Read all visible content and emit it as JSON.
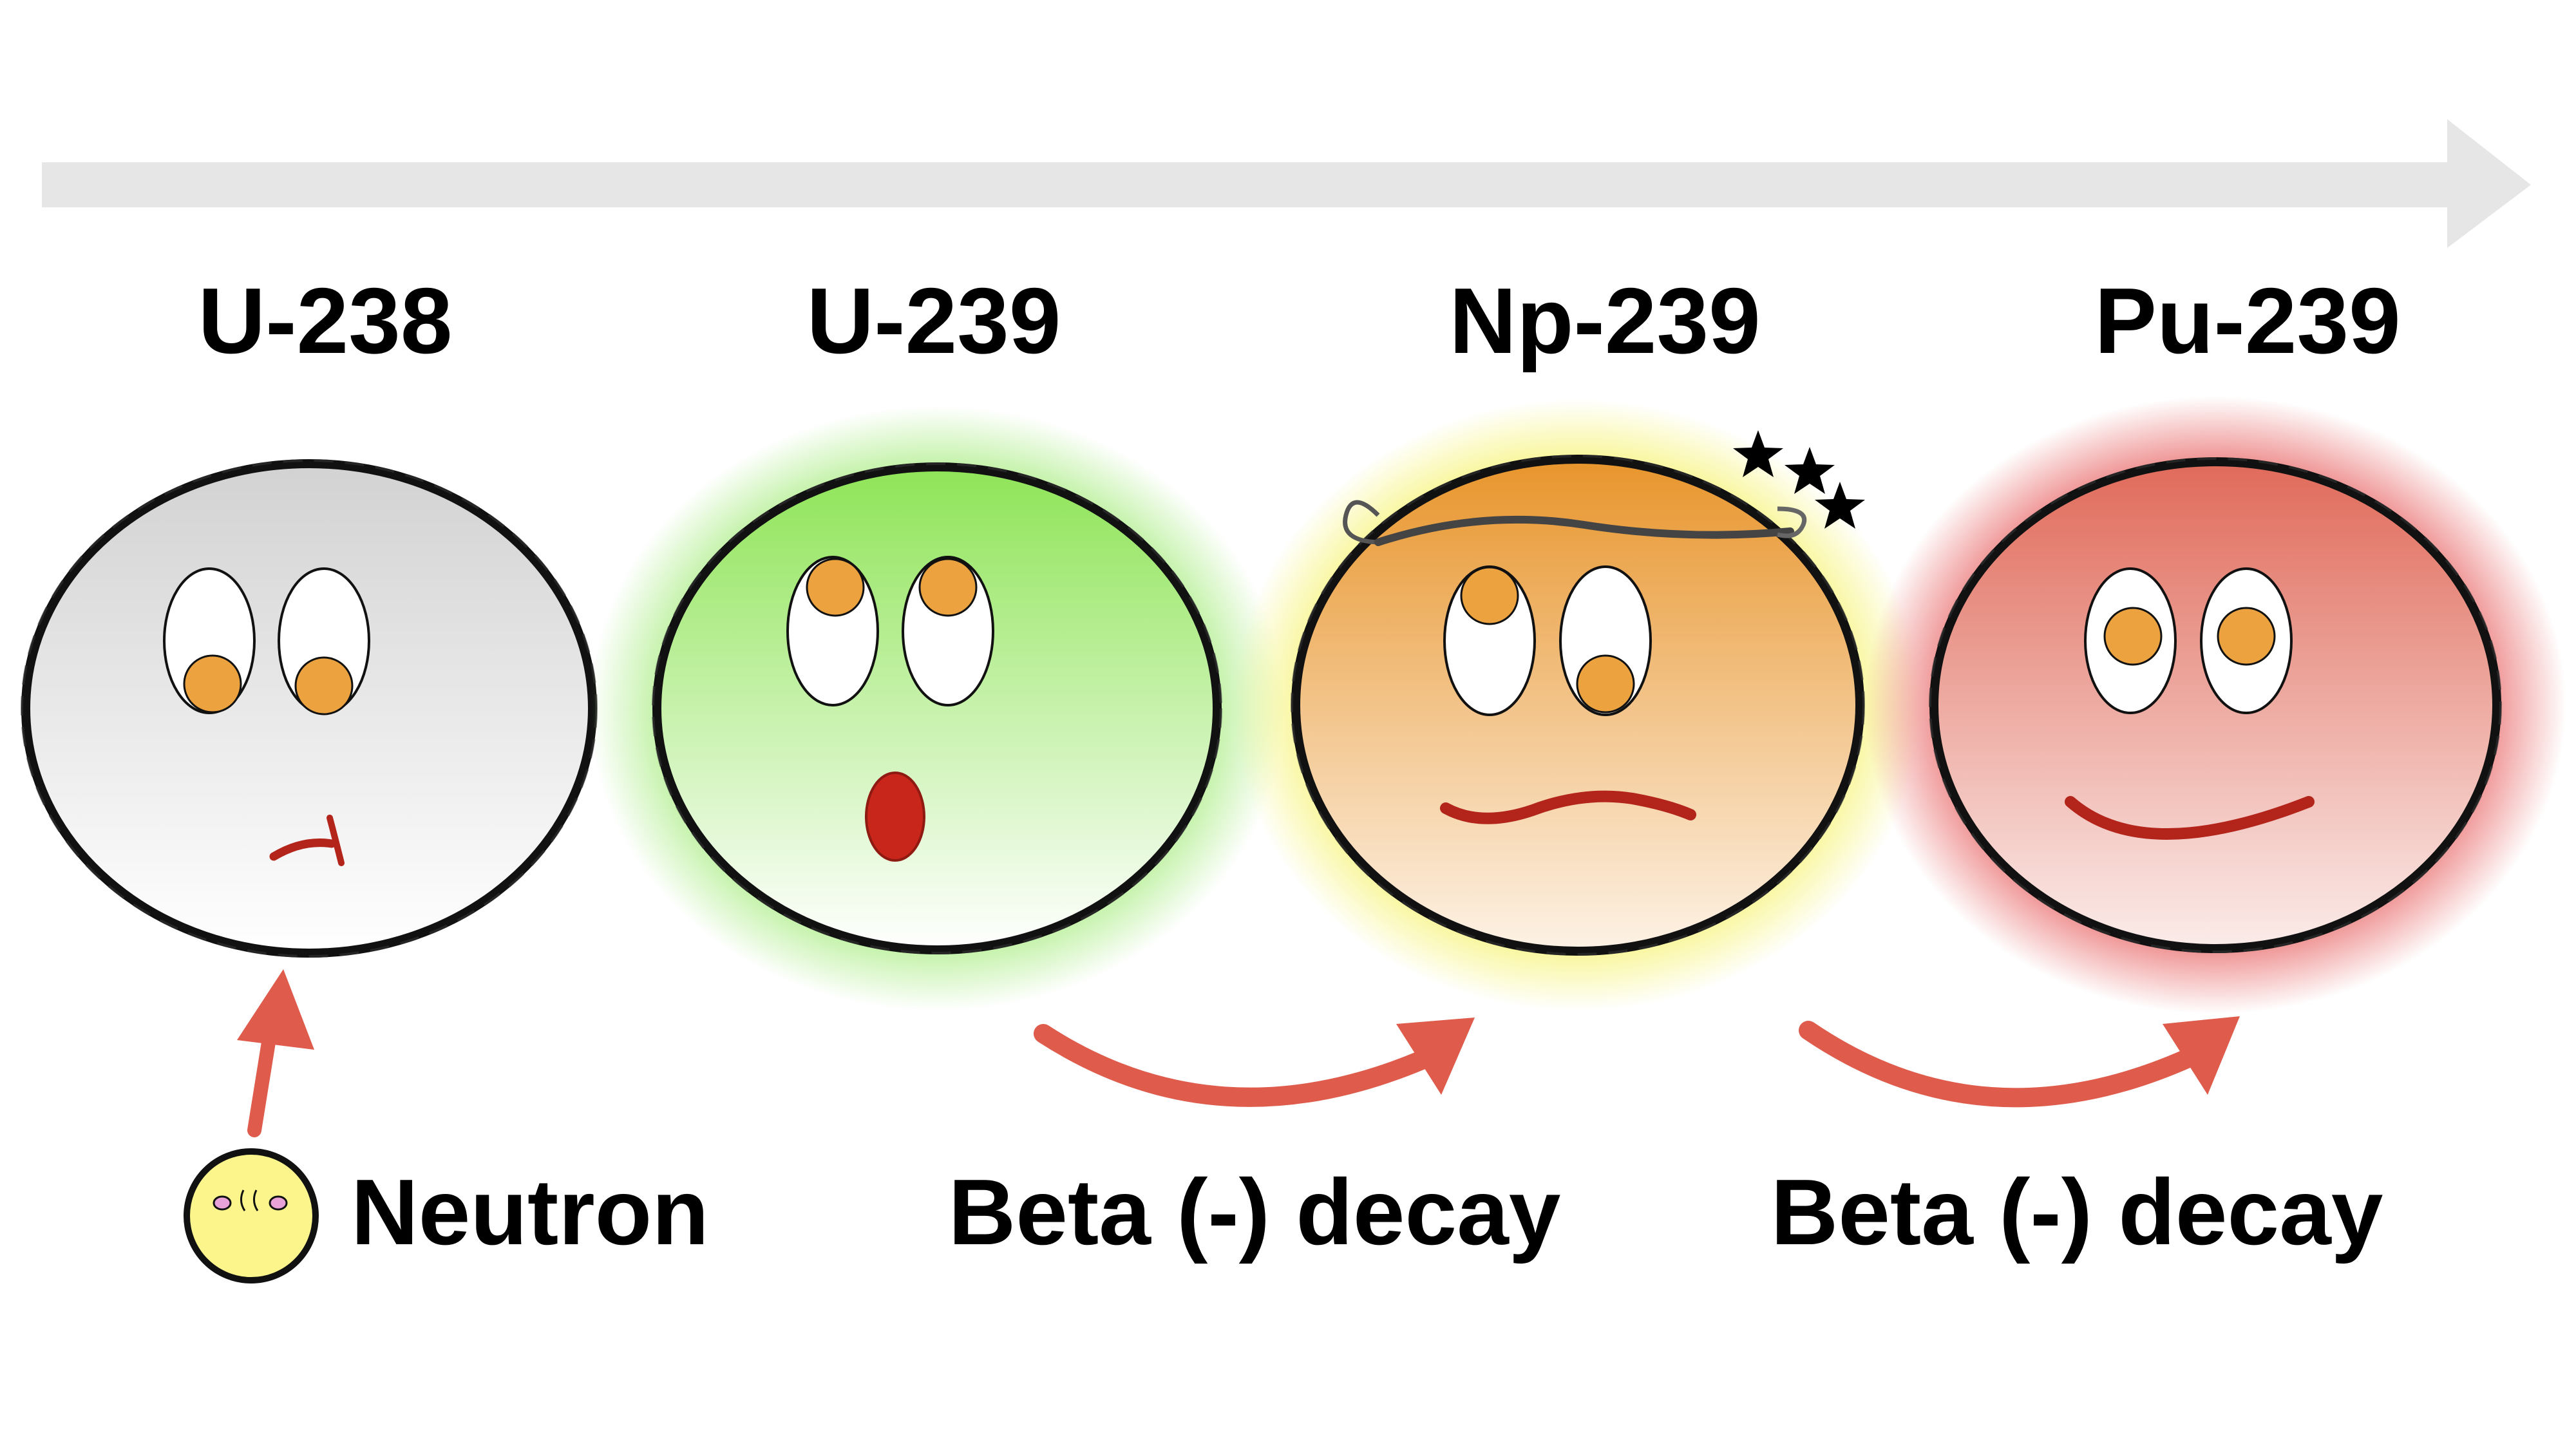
{
  "diagram": {
    "colors": {
      "timeline_arrow": "#e6e6e6",
      "reaction_arrow": "#df5c4c",
      "outline": "#111111",
      "mouth": "#b3241b",
      "pupil": "#eba23f",
      "u238_fill": "#d4d4d4",
      "u239_fill": "#8ee457",
      "np239_fill": "#e99a33",
      "pu239_fill": "#e27062",
      "neutron_fill": "#fbf58c"
    },
    "nuclei": [
      {
        "id": "u238",
        "label": "U-238",
        "expression": "frown",
        "glow": null
      },
      {
        "id": "u239",
        "label": "U-239",
        "expression": "surprised",
        "glow": "#8de65a"
      },
      {
        "id": "np239",
        "label": "Np-239",
        "expression": "dizzy",
        "glow": "#f2ee3c"
      },
      {
        "id": "pu239",
        "label": "Pu-239",
        "expression": "smile",
        "glow": "#e23b3b"
      }
    ],
    "steps": [
      {
        "id": "neutron",
        "label": "Neutron"
      },
      {
        "id": "beta1",
        "label": "Beta (-) decay"
      },
      {
        "id": "beta2",
        "label": "Beta (-) decay"
      }
    ]
  }
}
